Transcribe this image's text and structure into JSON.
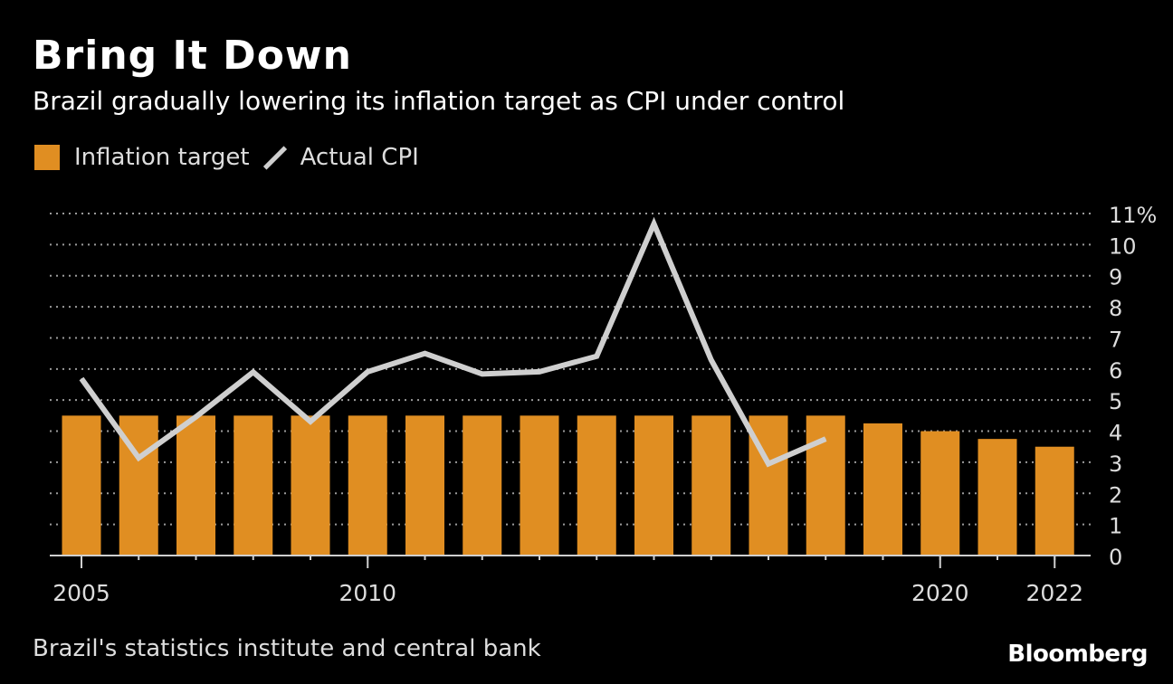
{
  "title": "Bring It Down",
  "subtitle": "Brazil gradually lowering its inflation target as CPI under control",
  "legend": {
    "bar_label": "Inflation target",
    "line_label": "Actual CPI"
  },
  "source": "Brazil's statistics institute and central bank",
  "brand": "Bloomberg",
  "colors": {
    "bar": "#e08e22",
    "line": "#cfcfcf",
    "grid": "#9a9a9a",
    "background": "#000000"
  },
  "chart_data": {
    "type": "bar",
    "x": [
      2005,
      2006,
      2007,
      2008,
      2009,
      2010,
      2011,
      2012,
      2013,
      2014,
      2015,
      2016,
      2017,
      2018,
      2019,
      2020,
      2021,
      2022
    ],
    "series": [
      {
        "name": "Inflation target",
        "type": "bar",
        "values": [
          4.5,
          4.5,
          4.5,
          4.5,
          4.5,
          4.5,
          4.5,
          4.5,
          4.5,
          4.5,
          4.5,
          4.5,
          4.5,
          4.5,
          4.25,
          4.0,
          3.75,
          3.5
        ]
      },
      {
        "name": "Actual CPI",
        "type": "line",
        "values": [
          5.69,
          3.14,
          4.46,
          5.9,
          4.31,
          5.91,
          6.5,
          5.84,
          5.91,
          6.41,
          10.67,
          6.29,
          2.95,
          3.75,
          null,
          null,
          null,
          null
        ]
      }
    ],
    "x_tick_labels": [
      "2005",
      "2010",
      "2020",
      "2022"
    ],
    "x_tick_values": [
      2005,
      2010,
      2020,
      2022
    ],
    "y_tick_labels": [
      "0",
      "1",
      "2",
      "3",
      "4",
      "5",
      "6",
      "7",
      "8",
      "9",
      "10",
      "11%"
    ],
    "y_tick_values": [
      0,
      1,
      2,
      3,
      4,
      5,
      6,
      7,
      8,
      9,
      10,
      11
    ],
    "ylim": [
      0,
      11
    ],
    "y_axis_position": "right",
    "grid": true,
    "legend_position": "top-left"
  }
}
